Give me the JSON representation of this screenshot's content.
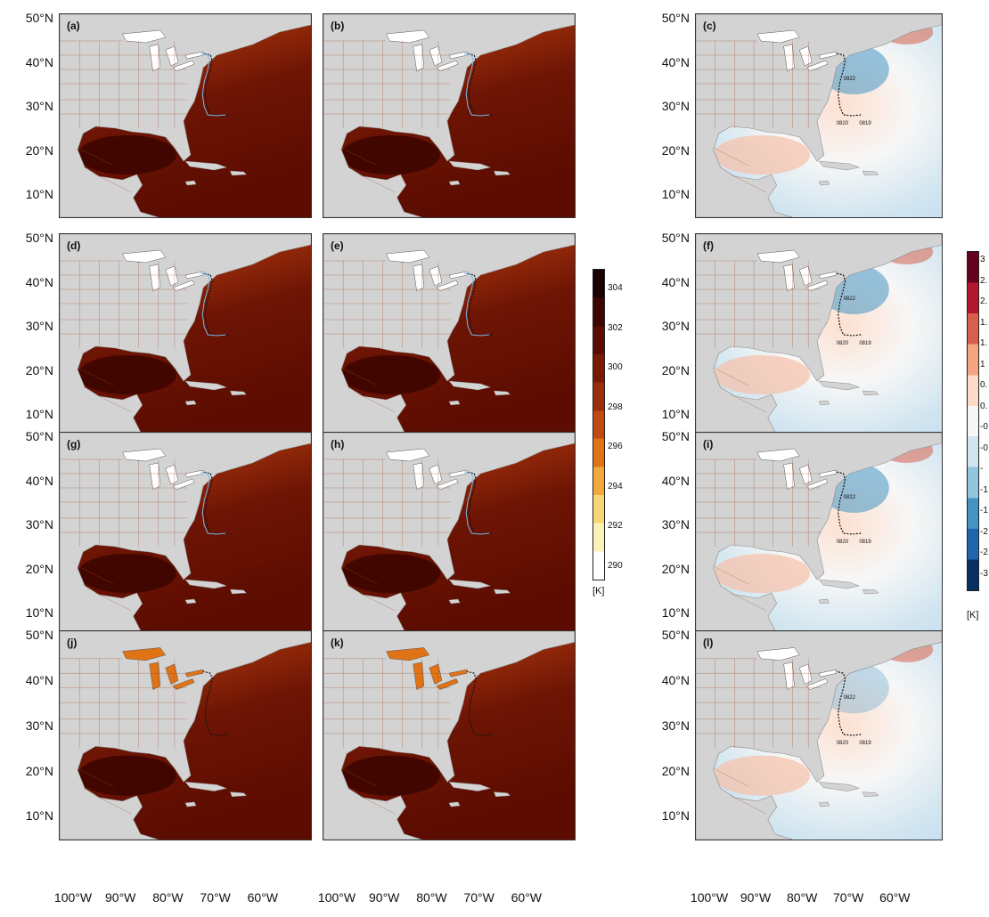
{
  "latitude_labels": [
    "50°N",
    "40°N",
    "30°N",
    "20°N",
    "10°N"
  ],
  "longitude_labels": [
    "100°W",
    "90°W",
    "80°W",
    "70°W",
    "60°W"
  ],
  "panels": [
    {
      "label": "(a)",
      "kind": "sst"
    },
    {
      "label": "(b)",
      "kind": "sst"
    },
    {
      "label": "(c)",
      "kind": "diff"
    },
    {
      "label": "(d)",
      "kind": "sst"
    },
    {
      "label": "(e)",
      "kind": "sst"
    },
    {
      "label": "(f)",
      "kind": "diff"
    },
    {
      "label": "(g)",
      "kind": "sst"
    },
    {
      "label": "(h)",
      "kind": "sst"
    },
    {
      "label": "(i)",
      "kind": "diff"
    },
    {
      "label": "(j)",
      "kind": "sst"
    },
    {
      "label": "(k)",
      "kind": "sst"
    },
    {
      "label": "(l)",
      "kind": "diff"
    }
  ],
  "track_dates": [
    "0822",
    "0820",
    "0819"
  ],
  "sst_colorbar": {
    "ticks": [
      "304",
      "302",
      "300",
      "298",
      "296",
      "294",
      "292",
      "290"
    ],
    "unit": "[K]",
    "colors": [
      "#1a0000",
      "#3d0600",
      "#5c0c00",
      "#7a1a05",
      "#9c2e0a",
      "#c04a10",
      "#e07315",
      "#f3a83a",
      "#f8d575",
      "#fbf2b5",
      "#ffffff"
    ]
  },
  "diff_colorbar": {
    "ticks": [
      "3",
      "2.",
      "2.",
      "1.",
      "1.",
      "1",
      "0.",
      "0.",
      "-0",
      "-0",
      "-",
      "-1",
      "-1",
      "-2",
      "-2",
      "-3"
    ],
    "unit": "[K]",
    "colors": [
      "#67001f",
      "#b2182b",
      "#d6604d",
      "#f4a582",
      "#fddbc7",
      "#f7f7f7",
      "#d1e5f0",
      "#92c5de",
      "#4393c3",
      "#2166ac",
      "#053061"
    ]
  },
  "colors": {
    "land": "#d3d3d3",
    "ocean_warm": "#6e1505",
    "ocean_hot": "#3d0500",
    "coastal_cool": "#f0c050",
    "diff_red": "#f4a582",
    "diff_blue": "#92c5de"
  }
}
